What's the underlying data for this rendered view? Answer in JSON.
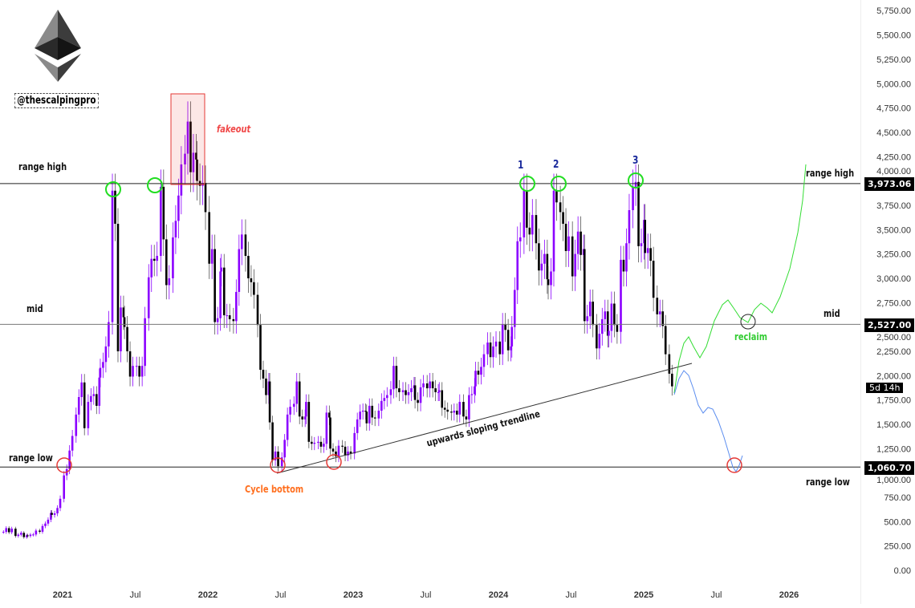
{
  "watermark": {
    "handle": "@thescalpingpro",
    "logo": "ethereum-logo"
  },
  "colors": {
    "up": "#8b00ff",
    "down": "#000000",
    "wick": "#555555",
    "green": "#22dd22",
    "red": "#e53935",
    "blue": "#5b8def",
    "orange": "#ff6f1f",
    "number": "#1a2a9c"
  },
  "annotations": {
    "range_high_left": "range high",
    "range_high_right": "range high",
    "mid_left": "mid",
    "mid_right": "mid",
    "range_low_left": "range low",
    "range_low_right": "range low",
    "fakeout": "fakeout",
    "cycle_bottom": "Cycle bottom",
    "reclaim": "reclaim",
    "trendline": "upwards sloping trendline",
    "touch_1": "1",
    "touch_2": "2",
    "touch_3": "3"
  },
  "price_tags": {
    "range_high": "3,973.06",
    "mid": "2,527.00",
    "range_low": "1,060.70",
    "countdown": "5d 14h"
  },
  "chart_data": {
    "type": "candlestick",
    "interval": "1W",
    "levels": {
      "range_high": 3973.06,
      "mid": 2527.0,
      "range_low": 1060.7
    },
    "ylim": [
      0,
      5750
    ],
    "y_ticks": [
      "0.00",
      "250.00",
      "500.00",
      "750.00",
      "1,000.00",
      "1,250.00",
      "1,500.00",
      "1,750.00",
      "2,000.00",
      "2,250.00",
      "2,500.00",
      "2,750.00",
      "3,000.00",
      "3,250.00",
      "3,500.00",
      "3,750.00",
      "4,000.00",
      "4,250.00",
      "4,500.00",
      "4,750.00",
      "5,000.00",
      "5,250.00",
      "5,500.00",
      "5,750.00"
    ],
    "x_ticks": [
      {
        "label": "2021",
        "date": "2021-01"
      },
      {
        "label": "Jul",
        "date": "2021-07"
      },
      {
        "label": "2022",
        "date": "2022-01"
      },
      {
        "label": "Jul",
        "date": "2022-07"
      },
      {
        "label": "2023",
        "date": "2023-01"
      },
      {
        "label": "Jul",
        "date": "2023-07"
      },
      {
        "label": "2024",
        "date": "2024-01"
      },
      {
        "label": "Jul",
        "date": "2024-07"
      },
      {
        "label": "2025",
        "date": "2025-01"
      },
      {
        "label": "Jul",
        "date": "2025-07"
      },
      {
        "label": "2026",
        "date": "2026-01"
      }
    ],
    "weekly_close_by_month": {
      "2020-08": [
        395,
        433,
        391,
        428
      ],
      "2020-09": [
        353,
        366,
        385,
        341,
        359
      ],
      "2020-10": [
        353,
        366,
        368,
        408
      ],
      "2020-11": [
        396,
        455,
        480,
        520,
        590
      ],
      "2020-12": [
        570,
        585,
        640,
        735
      ],
      "2021-01": [
        975,
        1040,
        1230,
        1380
      ],
      "2021-02": [
        1600,
        1780,
        1930,
        1460
      ],
      "2021-03": [
        1730,
        1790,
        1810,
        1690,
        1980
      ],
      "2021-04": [
        2080,
        2140,
        2300,
        2550
      ],
      "2021-05": [
        3900,
        3560,
        2250,
        2700,
        2600
      ],
      "2021-06": [
        2500,
        2250,
        1990,
        2100
      ],
      "2021-07": [
        2100,
        1990,
        2100,
        2590
      ],
      "2021-08": [
        3010,
        3200,
        3180,
        3230
      ],
      "2021-09": [
        3940,
        3400,
        2930,
        3000
      ],
      "2021-10": [
        3420,
        3590,
        3850,
        4170
      ],
      "2021-11": [
        4280,
        4610,
        4090,
        4290,
        4220
      ],
      "2021-12": [
        4000,
        3950,
        3980,
        3680
      ],
      "2022-01": [
        3150,
        3300,
        2550,
        2590,
        3070
      ],
      "2022-02": [
        3110,
        2620,
        2620,
        2580
      ],
      "2022-03": [
        2560,
        2860,
        3300,
        3450
      ],
      "2022-04": [
        3230,
        3000,
        2960,
        2830
      ],
      "2022-05": [
        2520,
        2060,
        1970,
        1800,
        1940
      ],
      "2022-06": [
        1520,
        1130,
        1220,
        1070
      ],
      "2022-07": [
        1160,
        1340,
        1600,
        1680
      ],
      "2022-08": [
        1710,
        1940,
        1580,
        1550,
        1580
      ],
      "2022-09": [
        1730,
        1320,
        1300,
        1310
      ],
      "2022-10": [
        1320,
        1270,
        1300,
        1620,
        1570
      ],
      "2022-11": [
        1250,
        1220,
        1170,
        1280
      ],
      "2022-12": [
        1270,
        1180,
        1220,
        1200
      ],
      "2023-01": [
        1410,
        1550,
        1630,
        1640,
        1630
      ],
      "2023-02": [
        1510,
        1690,
        1570,
        1560
      ],
      "2023-03": [
        1640,
        1740,
        1770,
        1800
      ],
      "2023-04": [
        1860,
        2100,
        1870,
        1830
      ],
      "2023-05": [
        1850,
        1800,
        1830,
        1870,
        1900
      ],
      "2023-06": [
        1750,
        1720,
        1880,
        1920
      ],
      "2023-07": [
        1870,
        1940,
        1870,
        1830,
        1830
      ],
      "2023-08": [
        1850,
        1670,
        1650,
        1630
      ],
      "2023-09": [
        1620,
        1640,
        1600,
        1730
      ],
      "2023-10": [
        1580,
        1550,
        1800,
        1810,
        1890
      ],
      "2023-11": [
        2050,
        2010,
        2090,
        2220
      ],
      "2023-12": [
        2340,
        2190,
        2300,
        2350
      ],
      "2024-01": [
        2220,
        2530,
        2470,
        2260,
        2300
      ],
      "2024-02": [
        2500,
        2880,
        3380,
        3420
      ],
      "2024-03": [
        3900,
        3520,
        3450,
        3650
      ],
      "2024-04": [
        3360,
        3080,
        3150,
        3250,
        2990
      ],
      "2024-05": [
        2930,
        3070,
        3900,
        3780
      ],
      "2024-06": [
        3680,
        3560,
        3280,
        3430
      ],
      "2024-07": [
        3020,
        3250,
        3480,
        3240,
        3300
      ],
      "2024-08": [
        2560,
        2610,
        2760,
        2520
      ],
      "2024-09": [
        2280,
        2430,
        2580,
        2660,
        2410
      ],
      "2024-10": [
        2460,
        2740,
        2520,
        2450
      ],
      "2024-11": [
        3190,
        3070,
        3360,
        3700
      ],
      "2024-12": [
        3940,
        3990,
        3330,
        3360,
        3600
      ],
      "2025-01": [
        3260,
        3310,
        3180,
        2800
      ],
      "2025-02": [
        2630,
        2660,
        2510,
        2220
      ],
      "2025-03": [
        2020,
        1890
      ]
    }
  }
}
